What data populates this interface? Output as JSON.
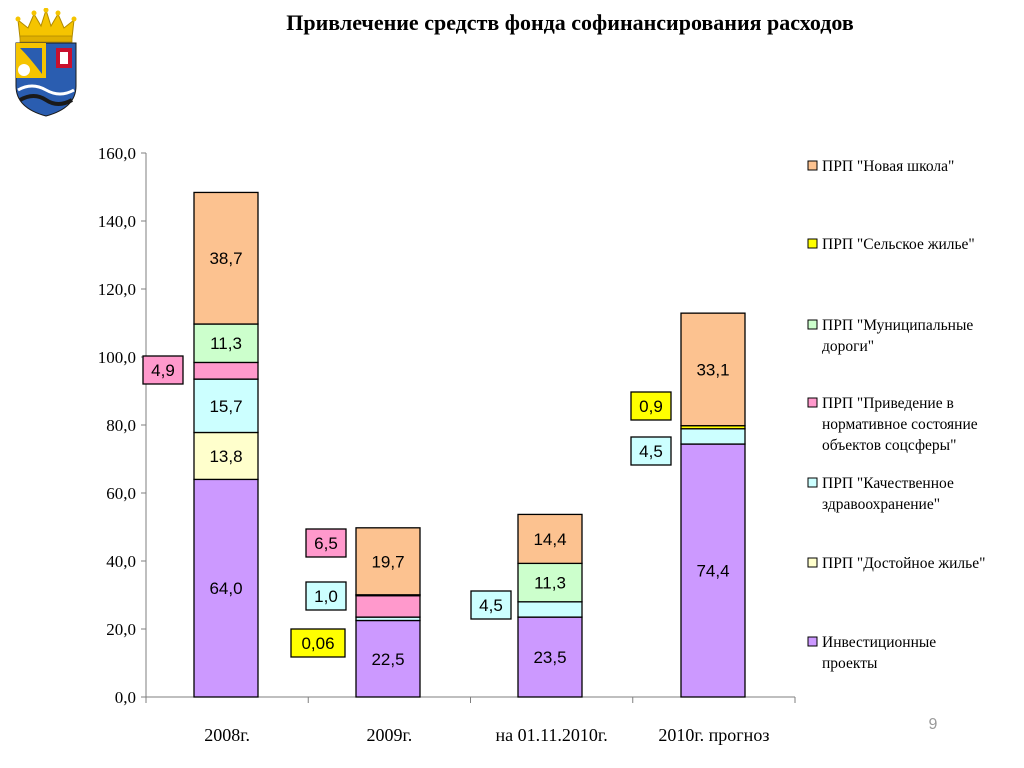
{
  "title": "Привлечение средств фонда софинансирования расходов",
  "page_number": "9",
  "emblem": {
    "name": "coat-of-arms",
    "colors": [
      "#f5c400",
      "#2a5db0",
      "#ffffff",
      "#c8102e",
      "#1a1a1a"
    ]
  },
  "colors": {
    "invest": "#cc99ff",
    "dostoynoe": "#ffffcc",
    "zdrav": "#ccffff",
    "soc": "#ff99cc",
    "dorogi": "#ccffcc",
    "selskoe": "#ffff00",
    "shkola": "#fcc290"
  },
  "chart_data": {
    "type": "bar",
    "stacked": true,
    "ylim": [
      0,
      160
    ],
    "yticks": [
      "0,0",
      "20,0",
      "40,0",
      "60,0",
      "80,0",
      "100,0",
      "120,0",
      "140,0",
      "160,0"
    ],
    "ytick_values": [
      0,
      20,
      40,
      60,
      80,
      100,
      120,
      140,
      160
    ],
    "grid": false,
    "legend_position": "right",
    "categories": [
      "2008г.",
      "2009г.",
      "на 01.11.2010г.",
      "2010г. прогноз"
    ],
    "series": [
      {
        "key": "invest",
        "name": "Инвестиционные проекты",
        "values": [
          64.0,
          22.5,
          23.5,
          74.4
        ],
        "labels": [
          "64,0",
          "22,5",
          "23,5",
          "74,4"
        ]
      },
      {
        "key": "dostoynoe",
        "name": "ПРП \"Достойное жилье\"",
        "values": [
          13.8,
          0.0,
          0.0,
          0.0
        ],
        "labels": [
          "13,8",
          "",
          "",
          ""
        ]
      },
      {
        "key": "zdrav",
        "name": "ПРП \"Качественное здравоохранение\"",
        "values": [
          15.7,
          1.0,
          4.5,
          4.5
        ],
        "labels": [
          "15,7",
          "1,0",
          "4,5",
          "4,5"
        ]
      },
      {
        "key": "soc",
        "name": "ПРП \"Приведение в нормативное состояние объектов соцсферы\"",
        "values": [
          4.9,
          6.5,
          0.0,
          0.0
        ],
        "labels": [
          "4,9",
          "6,5",
          "",
          ""
        ]
      },
      {
        "key": "dorogi",
        "name": "ПРП \"Муниципальные дороги\"",
        "values": [
          11.3,
          0.0,
          11.3,
          0.0
        ],
        "labels": [
          "11,3",
          "",
          "11,3",
          ""
        ]
      },
      {
        "key": "selskoe",
        "name": "ПРП \"Сельское жилье\"",
        "values": [
          0.0,
          0.06,
          0.0,
          0.9
        ],
        "labels": [
          "",
          "0,06",
          "",
          "0,9"
        ]
      },
      {
        "key": "shkola",
        "name": "ПРП \"Новая школа\"",
        "values": [
          38.7,
          19.7,
          14.4,
          33.1
        ],
        "labels": [
          "38,7",
          "19,7",
          "14,4",
          "33,1"
        ]
      }
    ],
    "legend": [
      {
        "key": "shkola",
        "lines": [
          "ПРП \"Новая школа\""
        ]
      },
      {
        "key": "selskoe",
        "lines": [
          "ПРП \"Сельское жилье\""
        ]
      },
      {
        "key": "dorogi",
        "lines": [
          "ПРП \"Муниципальные",
          "дороги\""
        ]
      },
      {
        "key": "soc",
        "lines": [
          "ПРП \"Приведение в",
          "нормативное состояние",
          "объектов соцсферы\""
        ]
      },
      {
        "key": "zdrav",
        "lines": [
          "ПРП \"Качественное",
          "здравоохранение\""
        ]
      },
      {
        "key": "dostoynoe",
        "lines": [
          "ПРП \"Достойное жилье\""
        ]
      },
      {
        "key": "invest",
        "lines": [
          "Инвестиционные",
          "проекты"
        ]
      }
    ],
    "callouts": [
      {
        "category": 0,
        "series": "soc"
      },
      {
        "category": 1,
        "series": "soc"
      },
      {
        "category": 1,
        "series": "zdrav"
      },
      {
        "category": 1,
        "series": "selskoe"
      },
      {
        "category": 2,
        "series": "zdrav"
      },
      {
        "category": 3,
        "series": "selskoe"
      },
      {
        "category": 3,
        "series": "zdrav"
      }
    ]
  }
}
